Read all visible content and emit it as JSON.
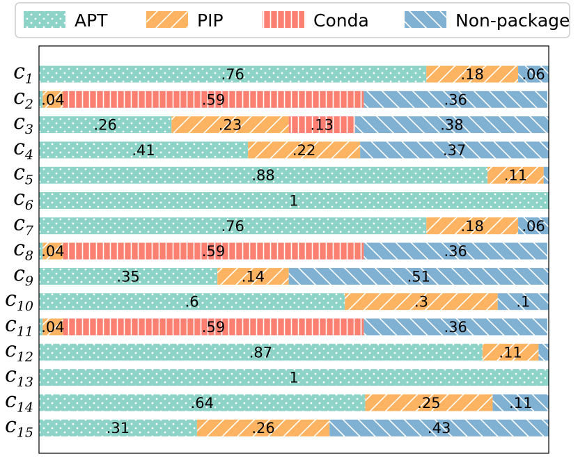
{
  "chart_data": {
    "type": "bar",
    "orientation": "horizontal",
    "stacked": true,
    "normalized": true,
    "title": "",
    "xlabel": "",
    "ylabel": "",
    "xlim": [
      0,
      1
    ],
    "grid": false,
    "legend_position": "top",
    "categories": [
      {
        "base": "c",
        "sub": "1"
      },
      {
        "base": "c",
        "sub": "2"
      },
      {
        "base": "c",
        "sub": "3"
      },
      {
        "base": "c",
        "sub": "4"
      },
      {
        "base": "c",
        "sub": "5"
      },
      {
        "base": "c",
        "sub": "6"
      },
      {
        "base": "c",
        "sub": "7"
      },
      {
        "base": "c",
        "sub": "8"
      },
      {
        "base": "c",
        "sub": "9"
      },
      {
        "base": "c",
        "sub": "10"
      },
      {
        "base": "c",
        "sub": "11"
      },
      {
        "base": "c",
        "sub": "12"
      },
      {
        "base": "c",
        "sub": "13"
      },
      {
        "base": "c",
        "sub": "14"
      },
      {
        "base": "c",
        "sub": "15"
      }
    ],
    "series": [
      {
        "name": "APT",
        "color": "#8dd3c7",
        "hatch": "dots",
        "values": [
          0.76,
          0.0072,
          0.26,
          0.41,
          0.88,
          1,
          0.76,
          0.0072,
          0.35,
          0.6,
          0.0072,
          0.87,
          1,
          0.64,
          0.31
        ],
        "labels": [
          ".76",
          "",
          ".26",
          ".41",
          ".88",
          "1",
          ".76",
          "",
          ".35",
          ".6",
          "",
          ".87",
          "1",
          ".64",
          ".31"
        ]
      },
      {
        "name": "PIP",
        "color": "#fdb462",
        "hatch": "forward-slash",
        "values": [
          0.18,
          0.04,
          0.23,
          0.22,
          0.11,
          0,
          0.18,
          0.04,
          0.14,
          0.3,
          0.04,
          0.11,
          0,
          0.25,
          0.26
        ],
        "labels": [
          ".18",
          ".04",
          ".23",
          ".22",
          ".11",
          "",
          ".18",
          ".04",
          ".14",
          ".3",
          ".04",
          ".11",
          "",
          ".25",
          ".26"
        ]
      },
      {
        "name": "Conda",
        "color": "#fb8072",
        "hatch": "vertical",
        "values": [
          0,
          0.59,
          0.13,
          0,
          0,
          0,
          0,
          0.59,
          0,
          0,
          0.59,
          0,
          0,
          0,
          0
        ],
        "labels": [
          "",
          ".59",
          ".13",
          "",
          "",
          "",
          "",
          ".59",
          "",
          "",
          ".59",
          "",
          "",
          "",
          ""
        ]
      },
      {
        "name": "Non-package",
        "color": "#80b1d3",
        "hatch": "back-slash",
        "values": [
          0.06,
          0.36,
          0.38,
          0.37,
          0.011,
          0,
          0.06,
          0.36,
          0.51,
          0.1,
          0.36,
          0.02,
          0,
          0.11,
          0.43
        ],
        "labels": [
          ".06",
          ".36",
          ".38",
          ".37",
          "",
          "",
          ".06",
          ".36",
          ".51",
          ".1",
          ".36",
          "",
          "",
          ".11",
          ".43"
        ]
      }
    ]
  }
}
